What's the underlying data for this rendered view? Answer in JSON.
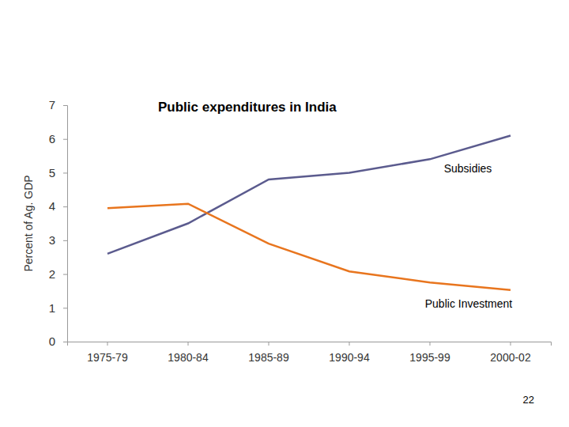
{
  "chart_data": {
    "type": "line",
    "title": "Public expenditures in India",
    "y_label": "Percent of Ag. GDP",
    "categories": [
      "1975-79",
      "1980-84",
      "1985-89",
      "1990-94",
      "1995-99",
      "2000-02"
    ],
    "series": [
      {
        "name": "Subsidies",
        "color": "#5b5b8e",
        "values": [
          2.6,
          3.5,
          4.8,
          5.0,
          5.4,
          6.1
        ]
      },
      {
        "name": "Public Investment",
        "color": "#e8751e",
        "values": [
          3.95,
          4.08,
          2.9,
          2.08,
          1.75,
          1.53
        ]
      }
    ],
    "ylim": [
      0,
      7
    ],
    "yticks": [
      0,
      1,
      2,
      3,
      4,
      5,
      6,
      7
    ],
    "grid": false,
    "annotations": [
      "22"
    ]
  }
}
